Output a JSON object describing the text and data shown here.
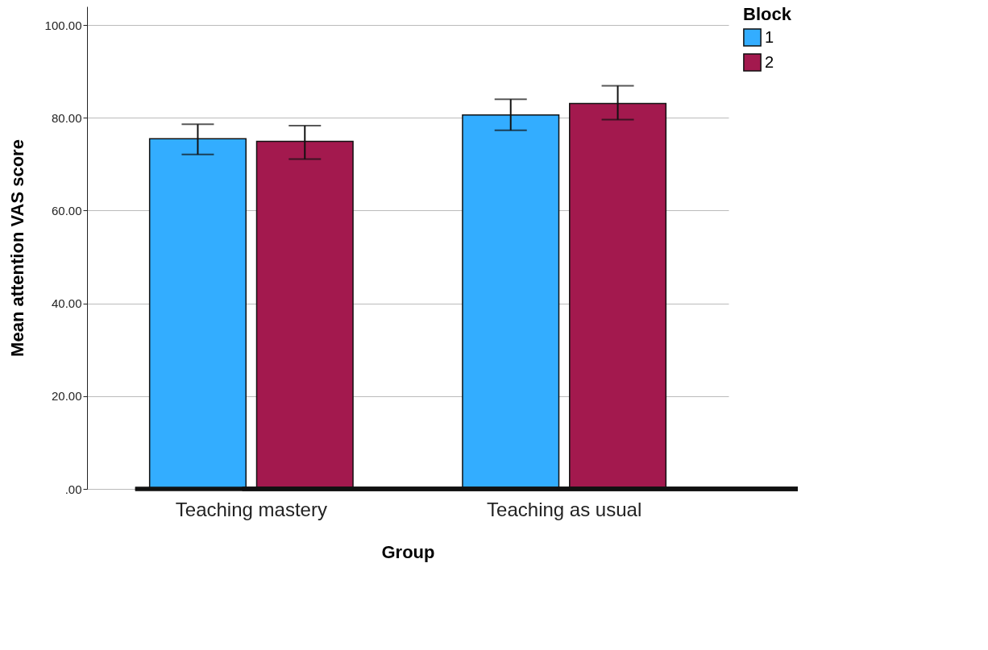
{
  "chart_data": {
    "type": "bar",
    "xlabel": "Group",
    "ylabel": "Mean attention VAS score",
    "legend_title": "Block",
    "categories": [
      "Teaching mastery",
      "Teaching as usual"
    ],
    "series": [
      {
        "name": "1",
        "color": "#33adff",
        "values": [
          75.5,
          80.6
        ],
        "errors": [
          [
            72.1,
            78.6
          ],
          [
            77.3,
            84.0
          ]
        ]
      },
      {
        "name": "2",
        "color": "#a3194e",
        "values": [
          74.9,
          83.1
        ],
        "errors": [
          [
            71.1,
            78.3
          ],
          [
            79.6,
            86.9
          ]
        ]
      }
    ],
    "ylim": [
      0,
      104
    ],
    "yticks": [
      {
        "value": 0,
        "label": ".00"
      },
      {
        "value": 20,
        "label": "20.00"
      },
      {
        "value": 40,
        "label": "40.00"
      },
      {
        "value": 60,
        "label": "60.00"
      },
      {
        "value": 80,
        "label": "80.00"
      },
      {
        "value": 100,
        "label": "100.00"
      }
    ],
    "grid": "y",
    "legend": "top right"
  }
}
